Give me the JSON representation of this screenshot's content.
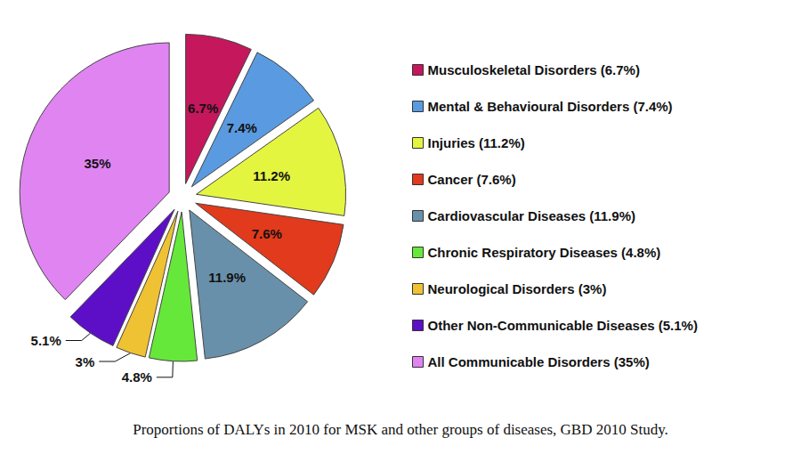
{
  "chart_data": {
    "type": "pie",
    "title": "Proportions of DALYs in 2010 for MSK and other groups of diseases, GBD 2010 Study.",
    "categories": [
      "Musculoskeletal Disorders (6.7%)",
      "Mental & Behavioural Disorders (7.4%)",
      "Injuries (11.2%)",
      "Cancer (7.6%)",
      "Cardiovascular Diseases (11.9%)",
      "Chronic Respiratory Diseases (4.8%)",
      "Neurological Disorders (3%)",
      "Other Non-Communicable Diseases (5.1%)",
      "All Communicable Disorders (35%)"
    ],
    "values": [
      6.7,
      7.4,
      11.2,
      7.6,
      11.9,
      4.8,
      3,
      5.1,
      35
    ],
    "value_labels": [
      "6.7%",
      "7.4%",
      "11.2%",
      "7.6%",
      "11.9%",
      "4.8%",
      "3%",
      "5.1%",
      "35%"
    ],
    "colors": [
      "#c4175c",
      "#5a9ae0",
      "#e4f540",
      "#e23a1c",
      "#6990aa",
      "#66e83a",
      "#efc233",
      "#5d0fc8",
      "#e084f2"
    ],
    "data_labels": true,
    "legend": "right"
  }
}
